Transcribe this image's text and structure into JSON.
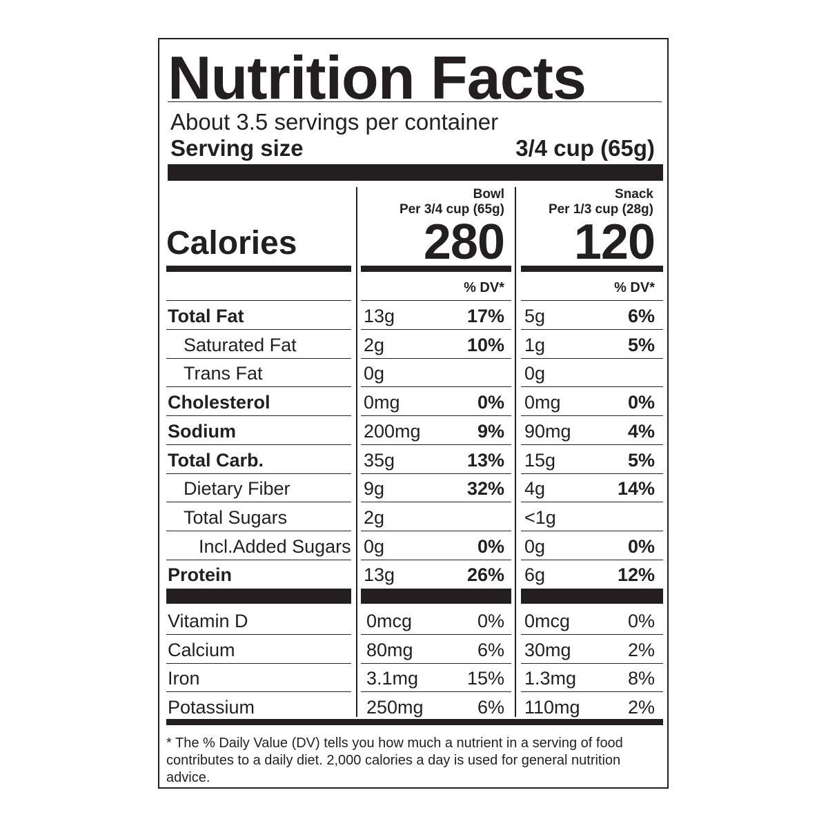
{
  "title": "Nutrition Facts",
  "servings_per_container": "About 3.5 servings per container",
  "serving_size_label": "Serving size",
  "serving_size_value": "3/4 cup (65g)",
  "calories_label": "Calories",
  "columns": [
    {
      "name": "Bowl",
      "portion": "Per 3/4 cup (65g)",
      "calories": "280",
      "dv_header": "% DV*"
    },
    {
      "name": "Snack",
      "portion": "Per 1/3 cup (28g)",
      "calories": "120",
      "dv_header": "% DV*"
    }
  ],
  "nutrients": [
    {
      "name": "Total Fat",
      "level": 0,
      "bold": true,
      "bowl_amount": "13g",
      "bowl_dv": "17%",
      "snack_amount": "5g",
      "snack_dv": "6%"
    },
    {
      "name": "Saturated Fat",
      "level": 1,
      "bold": false,
      "bowl_amount": "2g",
      "bowl_dv": "10%",
      "snack_amount": "1g",
      "snack_dv": "5%"
    },
    {
      "name": "Trans Fat",
      "level": 1,
      "bold": false,
      "bowl_amount": "0g",
      "bowl_dv": "",
      "snack_amount": "0g",
      "snack_dv": ""
    },
    {
      "name": "Cholesterol",
      "level": 0,
      "bold": true,
      "bowl_amount": "0mg",
      "bowl_dv": "0%",
      "snack_amount": "0mg",
      "snack_dv": "0%"
    },
    {
      "name": "Sodium",
      "level": 0,
      "bold": true,
      "bowl_amount": "200mg",
      "bowl_dv": "9%",
      "snack_amount": "90mg",
      "snack_dv": "4%"
    },
    {
      "name": "Total Carb.",
      "level": 0,
      "bold": true,
      "bowl_amount": "35g",
      "bowl_dv": "13%",
      "snack_amount": "15g",
      "snack_dv": "5%"
    },
    {
      "name": "Dietary Fiber",
      "level": 1,
      "bold": false,
      "bowl_amount": "9g",
      "bowl_dv": "32%",
      "snack_amount": "4g",
      "snack_dv": "14%"
    },
    {
      "name": "Total Sugars",
      "level": 1,
      "bold": false,
      "bowl_amount": "2g",
      "bowl_dv": "",
      "snack_amount": "<1g",
      "snack_dv": ""
    },
    {
      "name": "Incl.Added Sugars",
      "level": 2,
      "bold": false,
      "bowl_amount": "0g",
      "bowl_dv": "0%",
      "snack_amount": "0g",
      "snack_dv": "0%"
    },
    {
      "name": "Protein",
      "level": 0,
      "bold": true,
      "bowl_amount": "13g",
      "bowl_dv": "26%",
      "snack_amount": "6g",
      "snack_dv": "12%"
    }
  ],
  "vitamins": [
    {
      "name": "Vitamin D",
      "bowl_amount": "0mcg",
      "bowl_dv": "0%",
      "snack_amount": "0mcg",
      "snack_dv": "0%"
    },
    {
      "name": "Calcium",
      "bowl_amount": "80mg",
      "bowl_dv": "6%",
      "snack_amount": "30mg",
      "snack_dv": "2%"
    },
    {
      "name": "Iron",
      "bowl_amount": "3.1mg",
      "bowl_dv": "15%",
      "snack_amount": "1.3mg",
      "snack_dv": "8%"
    },
    {
      "name": "Potassium",
      "bowl_amount": "250mg",
      "bowl_dv": "6%",
      "snack_amount": "110mg",
      "snack_dv": "2%"
    }
  ],
  "footnote": "* The % Daily Value (DV) tells you how much a nutrient in a serving of food contributes to a daily diet. 2,000 calories a day is used for general nutrition advice."
}
